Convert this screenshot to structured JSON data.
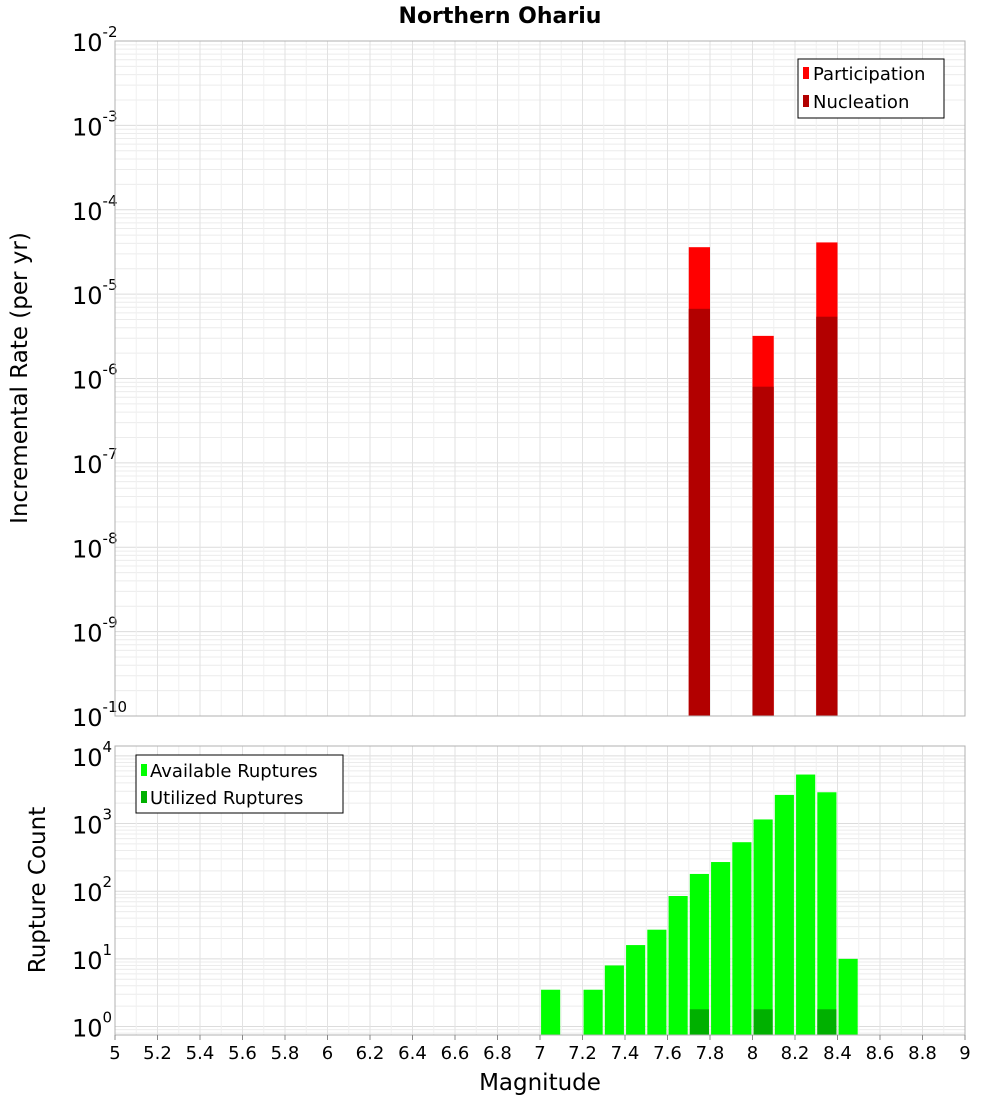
{
  "chart_data": [
    {
      "type": "bar",
      "title": "Northern Ohariu",
      "ylabel": "Incremental Rate (per yr)",
      "xlabel": "",
      "yscale": "log",
      "ylim": [
        1e-10,
        0.01
      ],
      "xlim": [
        5,
        9
      ],
      "bar_width": 0.1,
      "y_tick_exponents": [
        -2,
        -3,
        -4,
        -5,
        -6,
        -7,
        -8,
        -9,
        -10
      ],
      "series": [
        {
          "name": "Participation",
          "color": "#ff0000",
          "points": [
            {
              "x": 7.75,
              "y": 3.6e-05
            },
            {
              "x": 8.05,
              "y": 3.2e-06
            },
            {
              "x": 8.35,
              "y": 4.1e-05
            }
          ]
        },
        {
          "name": "Nucleation",
          "color": "#b20000",
          "points": [
            {
              "x": 7.75,
              "y": 6.7e-06
            },
            {
              "x": 8.05,
              "y": 8e-07
            },
            {
              "x": 8.35,
              "y": 5.4e-06
            }
          ]
        }
      ],
      "legend": [
        "Participation",
        "Nucleation"
      ],
      "legend_position": "top-right"
    },
    {
      "type": "bar",
      "title": "",
      "ylabel": "Rupture Count",
      "xlabel": "Magnitude",
      "yscale": "log",
      "ylim": [
        0.75,
        14000
      ],
      "xlim": [
        5,
        9
      ],
      "bar_width": 0.09,
      "y_tick_exponents": [
        4,
        3,
        2,
        1,
        0
      ],
      "x_ticks": [
        "5",
        "5.2",
        "5.4",
        "5.6",
        "5.8",
        "6",
        "6.2",
        "6.4",
        "6.6",
        "6.8",
        "7",
        "7.2",
        "7.4",
        "7.6",
        "7.8",
        "8",
        "8.2",
        "8.4",
        "8.6",
        "8.8",
        "9"
      ],
      "series": [
        {
          "name": "Available Ruptures",
          "color": "#00ff00",
          "points": [
            {
              "x": 7.05,
              "y": 3.5
            },
            {
              "x": 7.25,
              "y": 3.5
            },
            {
              "x": 7.35,
              "y": 8
            },
            {
              "x": 7.45,
              "y": 16
            },
            {
              "x": 7.55,
              "y": 27
            },
            {
              "x": 7.65,
              "y": 85
            },
            {
              "x": 7.75,
              "y": 180
            },
            {
              "x": 7.85,
              "y": 270
            },
            {
              "x": 7.95,
              "y": 530
            },
            {
              "x": 8.05,
              "y": 1150
            },
            {
              "x": 8.15,
              "y": 2650
            },
            {
              "x": 8.25,
              "y": 5300
            },
            {
              "x": 8.35,
              "y": 2900
            },
            {
              "x": 8.45,
              "y": 10
            }
          ]
        },
        {
          "name": "Utilized Ruptures",
          "color": "#00b000",
          "points": [
            {
              "x": 7.75,
              "y": 1.8
            },
            {
              "x": 8.05,
              "y": 1.8
            },
            {
              "x": 8.35,
              "y": 1.8
            }
          ]
        }
      ],
      "legend": [
        "Available Ruptures",
        "Utilized Ruptures"
      ],
      "legend_position": "top-left"
    }
  ]
}
